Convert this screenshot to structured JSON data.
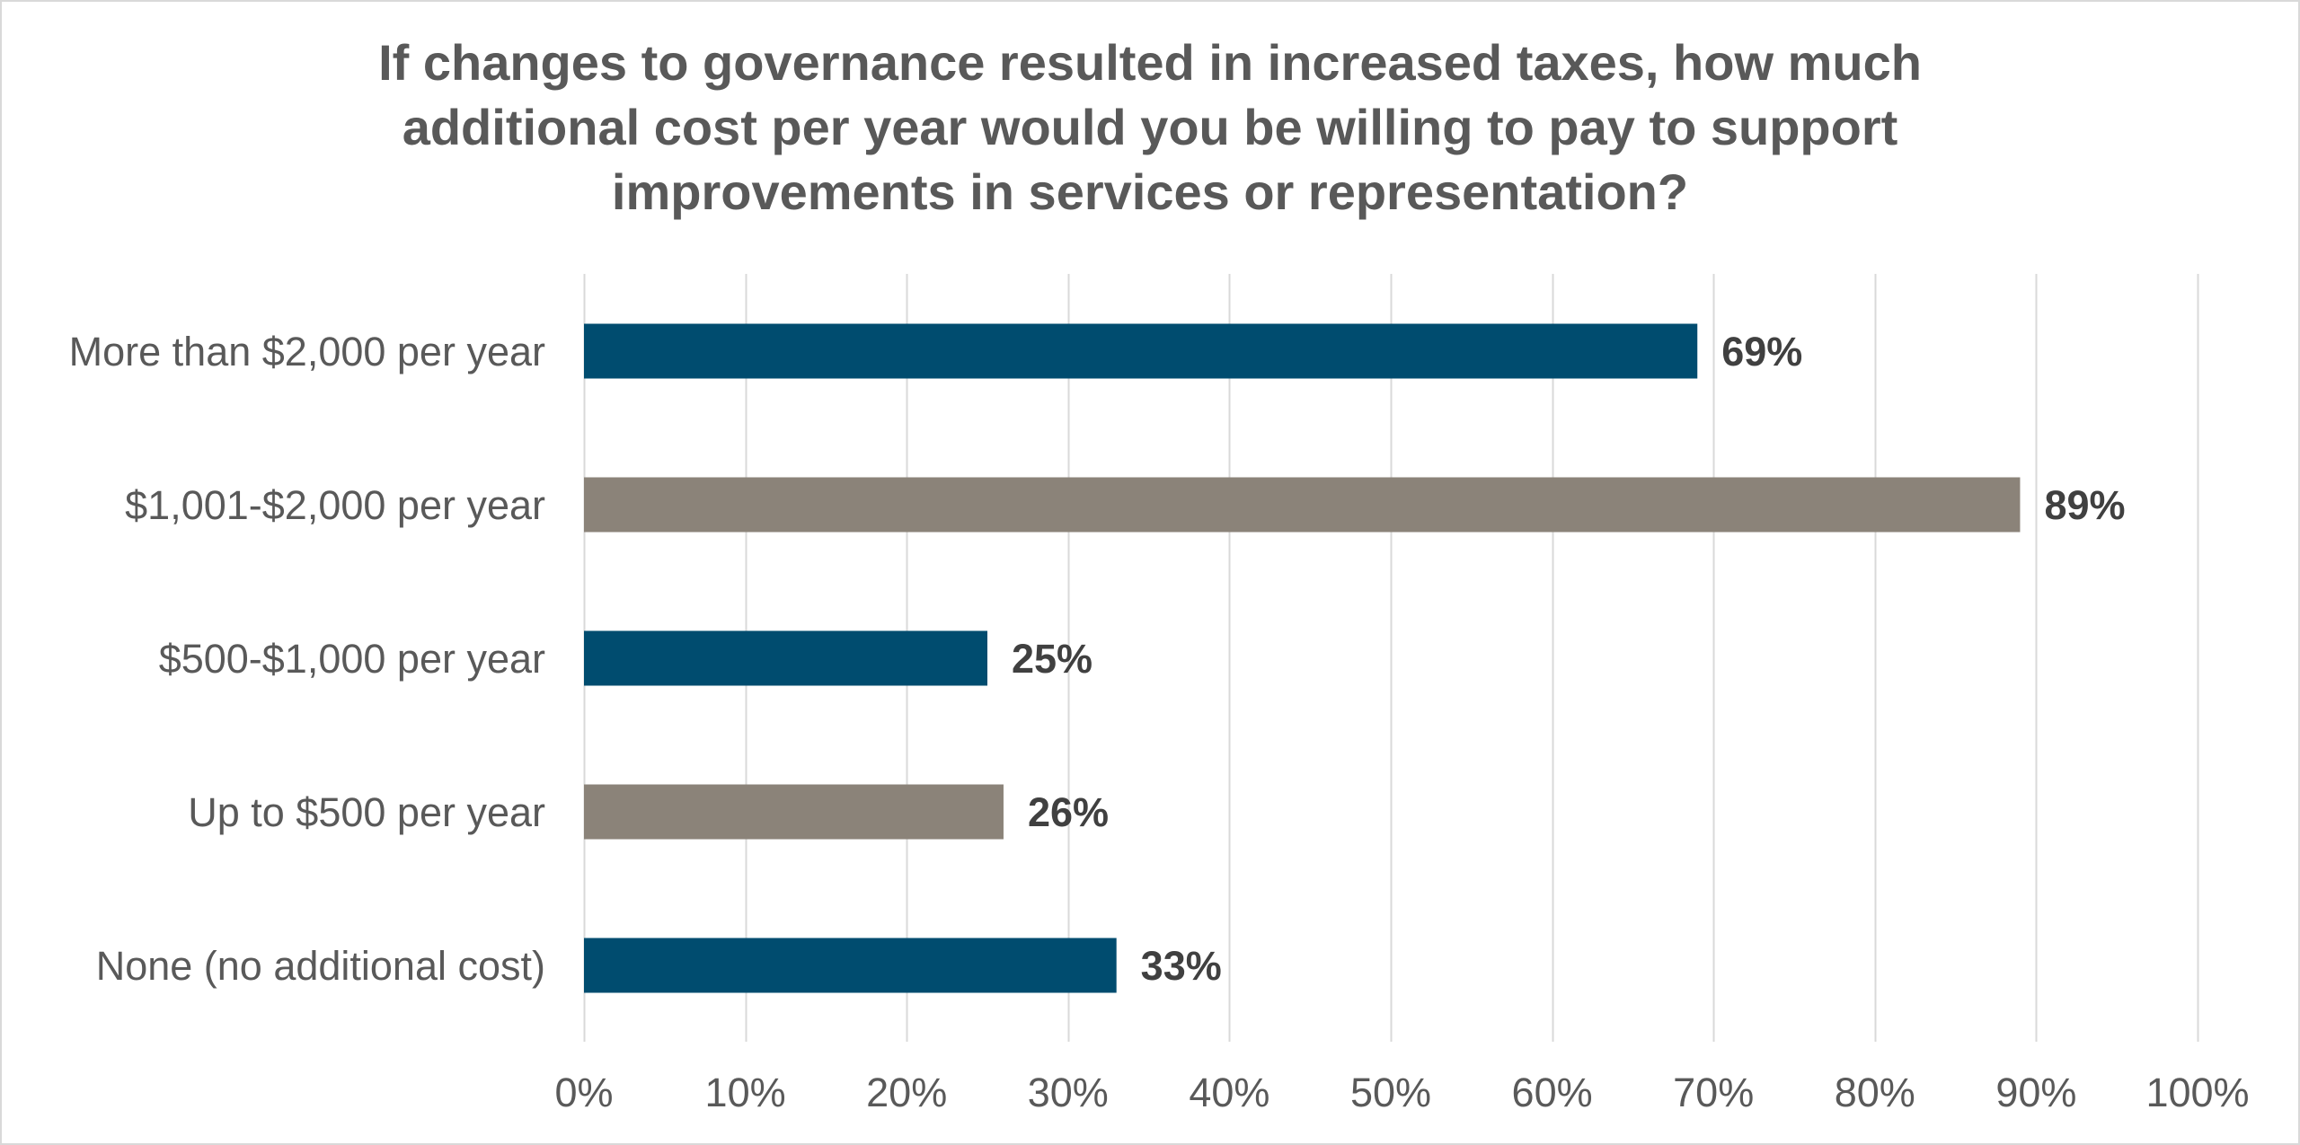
{
  "chart_data": {
    "type": "bar",
    "orientation": "horizontal",
    "title_lines": [
      "If changes to governance resulted in increased taxes, how much",
      "additional cost per year would you be willing to pay to support",
      "improvements in services or representation?"
    ],
    "categories": [
      "More than $2,000 per year",
      "$1,001-$2,000 per year",
      "$500-$1,000 per year",
      "Up to $500 per year",
      "None (no additional cost)"
    ],
    "values": [
      69,
      89,
      25,
      26,
      33
    ],
    "data_labels": [
      "69%",
      "89%",
      "25%",
      "26%",
      "33%"
    ],
    "bar_colors": [
      "#004c6f",
      "#8b8379",
      "#004c6f",
      "#8b8379",
      "#004c6f"
    ],
    "xlim": [
      0,
      100
    ],
    "x_ticks": [
      0,
      10,
      20,
      30,
      40,
      50,
      60,
      70,
      80,
      90,
      100
    ],
    "x_tick_labels": [
      "0%",
      "10%",
      "20%",
      "30%",
      "40%",
      "50%",
      "60%",
      "70%",
      "80%",
      "90%",
      "100%"
    ],
    "grid": true,
    "legend": "none",
    "colors": {
      "gridline": "#d9d9d9",
      "title": "#595959",
      "axis_text": "#595959",
      "data_label": "#404040"
    }
  }
}
